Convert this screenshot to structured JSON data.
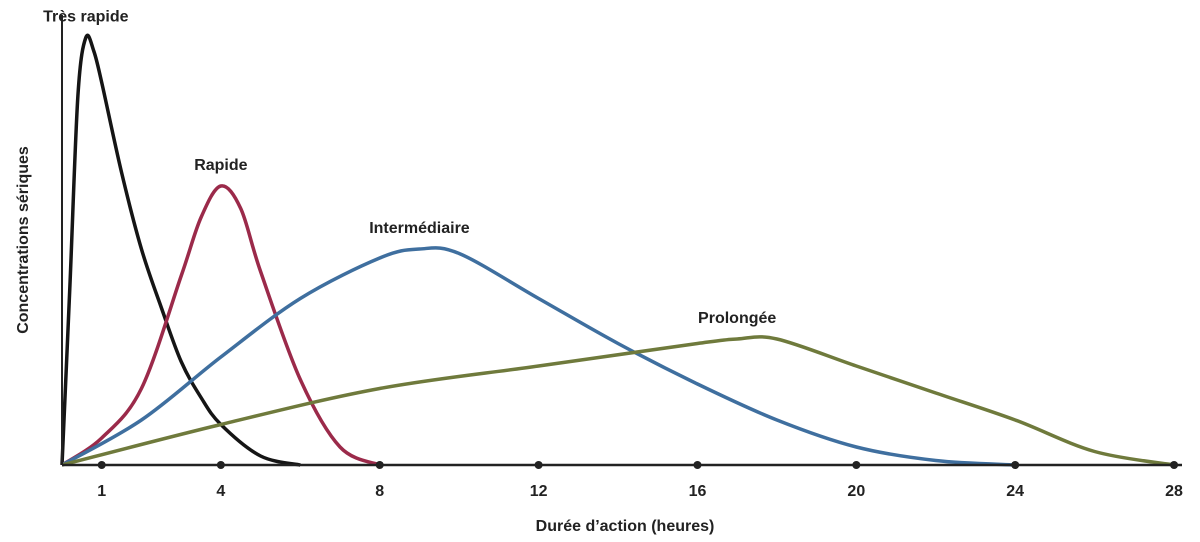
{
  "chart_data": {
    "type": "line",
    "xlabel": "Durée d’action (heures)",
    "ylabel": "Concentrations sériques",
    "xlim": [
      0,
      28.2
    ],
    "ylim": [
      0,
      100
    ],
    "xticks": [
      1,
      4,
      8,
      12,
      16,
      20,
      24,
      28
    ],
    "series": [
      {
        "name": "Très rapide",
        "color": "#151515",
        "x": [
          0,
          0.2,
          0.4,
          0.6,
          0.8,
          1,
          1.5,
          2,
          2.5,
          3,
          3.5,
          4,
          5,
          6
        ],
        "values": [
          0,
          40,
          82,
          95,
          92,
          85,
          65,
          48,
          35,
          23,
          15,
          9,
          2,
          0
        ]
      },
      {
        "name": "Rapide",
        "color": "#9b2a4a",
        "x": [
          0,
          1,
          2,
          3,
          3.5,
          4,
          4.5,
          5,
          6,
          7,
          8
        ],
        "values": [
          0,
          6,
          17,
          42,
          55,
          62,
          57,
          43,
          19,
          4,
          0
        ]
      },
      {
        "name": "Intermédiaire",
        "color": "#3f6f9f",
        "x": [
          0,
          2,
          4,
          6,
          8,
          9,
          10,
          12,
          14,
          16,
          18,
          20,
          22,
          24
        ],
        "values": [
          0,
          10,
          24,
          37,
          46,
          48,
          47,
          37,
          27,
          18,
          10,
          4,
          1,
          0
        ]
      },
      {
        "name": "Prolongée",
        "color": "#6f7a3c",
        "x": [
          0,
          4,
          8,
          12,
          16,
          17,
          18,
          20,
          22,
          24,
          26,
          28
        ],
        "values": [
          0,
          9,
          17,
          22,
          27,
          28,
          28,
          22,
          16,
          10,
          3,
          0
        ]
      }
    ]
  }
}
